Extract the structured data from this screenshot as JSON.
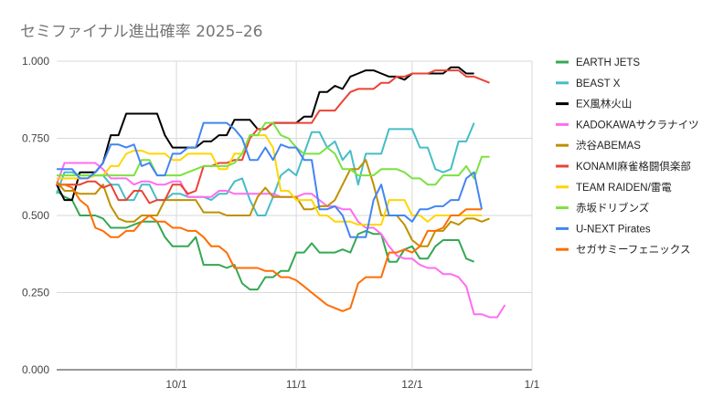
{
  "chart_data": {
    "type": "line",
    "title": "セミファイナル進出確率 2025–26",
    "xlabel": "",
    "ylabel": "",
    "ylim": [
      0,
      1
    ],
    "y_ticks": [
      "0.000",
      "0.250",
      "0.500",
      "0.750",
      "1.000"
    ],
    "y_tick_values": [
      0,
      0.25,
      0.5,
      0.75,
      1.0
    ],
    "x_ticks": [
      "10/1",
      "11/1",
      "12/1",
      "1/1"
    ],
    "x_tick_days": [
      31,
      62,
      92,
      123
    ],
    "x_range_days": [
      0,
      123
    ],
    "grid": true,
    "legend_position": "right",
    "x_start_day": 0,
    "x_step_days": 2,
    "series": [
      {
        "name": "EARTH JETS",
        "color": "#34a853",
        "values": [
          0.58,
          0.56,
          0.55,
          0.5,
          0.5,
          0.5,
          0.49,
          0.46,
          0.46,
          0.46,
          0.47,
          0.48,
          0.48,
          0.48,
          0.43,
          0.4,
          0.4,
          0.4,
          0.43,
          0.34,
          0.34,
          0.34,
          0.33,
          0.34,
          0.28,
          0.26,
          0.26,
          0.3,
          0.3,
          0.32,
          0.32,
          0.38,
          0.38,
          0.41,
          0.38,
          0.38,
          0.38,
          0.39,
          0.38,
          0.44,
          0.45,
          0.44,
          0.44,
          0.35,
          0.35,
          0.39,
          0.4,
          0.36,
          0.36,
          0.4,
          0.42,
          0.42,
          0.42,
          0.36,
          0.35
        ]
      },
      {
        "name": "BEAST X",
        "color": "#46bdc6",
        "values": [
          0.57,
          0.64,
          0.64,
          0.63,
          0.63,
          0.63,
          0.63,
          0.6,
          0.6,
          0.55,
          0.55,
          0.6,
          0.6,
          0.55,
          0.55,
          0.57,
          0.57,
          0.56,
          0.56,
          0.56,
          0.55,
          0.57,
          0.57,
          0.61,
          0.62,
          0.55,
          0.5,
          0.5,
          0.56,
          0.63,
          0.65,
          0.63,
          0.7,
          0.77,
          0.77,
          0.72,
          0.74,
          0.68,
          0.71,
          0.6,
          0.7,
          0.7,
          0.7,
          0.78,
          0.78,
          0.78,
          0.78,
          0.72,
          0.72,
          0.65,
          0.64,
          0.65,
          0.74,
          0.74,
          0.8
        ]
      },
      {
        "name": "EX風林火山",
        "color": "#000000",
        "values": [
          0.6,
          0.55,
          0.55,
          0.64,
          0.64,
          0.64,
          0.67,
          0.76,
          0.76,
          0.83,
          0.83,
          0.83,
          0.83,
          0.83,
          0.76,
          0.72,
          0.72,
          0.72,
          0.72,
          0.74,
          0.74,
          0.76,
          0.76,
          0.81,
          0.81,
          0.81,
          0.78,
          0.78,
          0.8,
          0.8,
          0.8,
          0.8,
          0.82,
          0.82,
          0.9,
          0.9,
          0.92,
          0.91,
          0.95,
          0.96,
          0.97,
          0.97,
          0.96,
          0.95,
          0.95,
          0.94,
          0.96,
          0.96,
          0.96,
          0.96,
          0.96,
          0.98,
          0.98,
          0.96,
          0.96
        ]
      },
      {
        "name": "KADOKAWAサクラナイツ",
        "color": "#ff6df0",
        "values": [
          0.6,
          0.67,
          0.67,
          0.67,
          0.67,
          0.67,
          0.65,
          0.62,
          0.62,
          0.62,
          0.6,
          0.61,
          0.61,
          0.6,
          0.6,
          0.61,
          0.61,
          0.56,
          0.56,
          0.56,
          0.56,
          0.58,
          0.58,
          0.57,
          0.57,
          0.57,
          0.57,
          0.57,
          0.57,
          0.56,
          0.56,
          0.56,
          0.57,
          0.57,
          0.55,
          0.53,
          0.53,
          0.52,
          0.52,
          0.48,
          0.46,
          0.46,
          0.44,
          0.4,
          0.37,
          0.36,
          0.36,
          0.34,
          0.33,
          0.33,
          0.31,
          0.31,
          0.3,
          0.27,
          0.18,
          0.18,
          0.17,
          0.17,
          0.21
        ]
      },
      {
        "name": "渋谷ABEMAS",
        "color": "#bf9000",
        "values": [
          0.61,
          0.58,
          0.58,
          0.57,
          0.57,
          0.57,
          0.6,
          0.53,
          0.49,
          0.48,
          0.48,
          0.5,
          0.5,
          0.5,
          0.55,
          0.55,
          0.55,
          0.55,
          0.55,
          0.51,
          0.51,
          0.51,
          0.5,
          0.5,
          0.5,
          0.5,
          0.56,
          0.59,
          0.56,
          0.56,
          0.56,
          0.56,
          0.52,
          0.52,
          0.53,
          0.53,
          0.55,
          0.6,
          0.65,
          0.65,
          0.68,
          0.6,
          0.5,
          0.5,
          0.5,
          0.47,
          0.42,
          0.4,
          0.4,
          0.45,
          0.45,
          0.48,
          0.47,
          0.49,
          0.49,
          0.48,
          0.49
        ]
      },
      {
        "name": "KONAMI麻雀格闘倶楽部",
        "color": "#ea4335",
        "values": [
          0.6,
          0.6,
          0.6,
          0.6,
          0.61,
          0.61,
          0.59,
          0.6,
          0.55,
          0.55,
          0.58,
          0.58,
          0.54,
          0.55,
          0.55,
          0.6,
          0.6,
          0.57,
          0.58,
          0.66,
          0.66,
          0.67,
          0.67,
          0.68,
          0.68,
          0.75,
          0.78,
          0.78,
          0.8,
          0.8,
          0.8,
          0.8,
          0.8,
          0.8,
          0.84,
          0.84,
          0.84,
          0.87,
          0.9,
          0.91,
          0.91,
          0.91,
          0.93,
          0.93,
          0.95,
          0.95,
          0.96,
          0.96,
          0.96,
          0.97,
          0.97,
          0.97,
          0.97,
          0.95,
          0.95,
          0.94,
          0.93
        ]
      },
      {
        "name": "TEAM RAIDEN/雷電",
        "color": "#ffd600",
        "values": [
          0.62,
          0.62,
          0.62,
          0.62,
          0.62,
          0.63,
          0.63,
          0.66,
          0.66,
          0.7,
          0.71,
          0.71,
          0.7,
          0.7,
          0.7,
          0.68,
          0.68,
          0.7,
          0.7,
          0.7,
          0.7,
          0.65,
          0.65,
          0.7,
          0.7,
          0.76,
          0.76,
          0.76,
          0.72,
          0.58,
          0.58,
          0.55,
          0.55,
          0.55,
          0.5,
          0.5,
          0.48,
          0.48,
          0.48,
          0.47,
          0.47,
          0.47,
          0.47,
          0.55,
          0.55,
          0.55,
          0.5,
          0.5,
          0.48,
          0.5,
          0.5,
          0.5,
          0.5,
          0.5,
          0.5,
          0.5
        ]
      },
      {
        "name": "赤坂ドリブンズ",
        "color": "#7be141",
        "values": [
          0.63,
          0.63,
          0.63,
          0.63,
          0.63,
          0.63,
          0.63,
          0.63,
          0.63,
          0.63,
          0.63,
          0.68,
          0.68,
          0.63,
          0.63,
          0.63,
          0.63,
          0.64,
          0.65,
          0.66,
          0.66,
          0.66,
          0.66,
          0.67,
          0.7,
          0.76,
          0.76,
          0.8,
          0.8,
          0.76,
          0.75,
          0.72,
          0.7,
          0.7,
          0.7,
          0.72,
          0.7,
          0.65,
          0.65,
          0.63,
          0.63,
          0.63,
          0.65,
          0.65,
          0.65,
          0.64,
          0.62,
          0.62,
          0.6,
          0.6,
          0.63,
          0.63,
          0.63,
          0.66,
          0.62,
          0.69,
          0.69
        ]
      },
      {
        "name": "U-NEXT Pirates",
        "color": "#4285f4",
        "values": [
          0.65,
          0.65,
          0.65,
          0.62,
          0.62,
          0.64,
          0.67,
          0.73,
          0.73,
          0.72,
          0.73,
          0.66,
          0.67,
          0.63,
          0.63,
          0.7,
          0.7,
          0.72,
          0.72,
          0.8,
          0.8,
          0.8,
          0.8,
          0.78,
          0.75,
          0.68,
          0.68,
          0.72,
          0.68,
          0.73,
          0.72,
          0.72,
          0.68,
          0.68,
          0.52,
          0.52,
          0.53,
          0.5,
          0.43,
          0.43,
          0.43,
          0.55,
          0.6,
          0.5,
          0.5,
          0.5,
          0.48,
          0.52,
          0.52,
          0.53,
          0.53,
          0.55,
          0.55,
          0.62,
          0.64,
          0.52
        ]
      },
      {
        "name": "セガサミーフェニックス",
        "color": "#ff6d01",
        "values": [
          0.6,
          0.6,
          0.59,
          0.55,
          0.53,
          0.46,
          0.45,
          0.43,
          0.43,
          0.45,
          0.45,
          0.48,
          0.5,
          0.48,
          0.48,
          0.46,
          0.46,
          0.45,
          0.45,
          0.43,
          0.4,
          0.4,
          0.38,
          0.33,
          0.33,
          0.33,
          0.33,
          0.32,
          0.32,
          0.3,
          0.3,
          0.29,
          0.27,
          0.25,
          0.23,
          0.21,
          0.2,
          0.19,
          0.2,
          0.28,
          0.3,
          0.3,
          0.3,
          0.38,
          0.38,
          0.39,
          0.38,
          0.4,
          0.45,
          0.45,
          0.46,
          0.5,
          0.5,
          0.52,
          0.52,
          0.52
        ]
      }
    ]
  }
}
